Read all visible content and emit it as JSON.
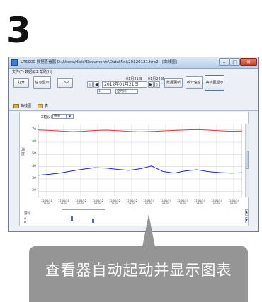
{
  "step_number": "3",
  "window": {
    "title": "LR5000 数据查看器 D:\\Users\\Hioki\\Documents\\DataMini\\20120121.hrp2 - [曲线图]",
    "controls": {
      "minimize": "–",
      "maximize": "□",
      "close": "✕"
    },
    "menu": [
      "文件(F)",
      "数据加工",
      "帮助(H)"
    ],
    "toolbar": {
      "open_label": "打开",
      "show_label": "信息显示",
      "csv_label": "CSV",
      "range_text": "01月21日 — 01月24日",
      "date_value": "2012年01月21日",
      "day_value": "1",
      "interval_value": "全时间",
      "refresh_label": "数据更新",
      "stats_label": "统计信息",
      "display_label": "曲线图显示"
    },
    "tabs": [
      {
        "label": "曲线图",
        "icon": "chart-icon"
      },
      {
        "label": "表",
        "icon": "table-icon"
      }
    ],
    "graph": {
      "xaxis_label": "X轴设置",
      "xaxis_value": "通道",
      "ylabel": "温度",
      "xticks": [
        "12/01/21 12:00",
        "12/01/21 18:00",
        "12/01/22 00:00",
        "12/01/22 06:00",
        "12/01/22 12:00",
        "12/01/22 18:00",
        "12/01/23 00:00",
        "12/01/23 06:00",
        "12/01/23 12:00",
        "12/01/23 18:00",
        "12/01/24 00:00",
        "12/01/24 06:00"
      ],
      "bottom_label": "游标",
      "bottom_a": "A",
      "bottom_b": "B"
    }
  },
  "caption": "查看器自动起动并显示图表",
  "colors": {
    "caption_bg": "#959595",
    "series_red": "#d83a3a",
    "series_blue": "#1a27b8"
  },
  "chart_data": {
    "type": "line",
    "ylabel": "温度",
    "ylim": [
      15,
      75
    ],
    "yticks": [
      70,
      60,
      50,
      40,
      30,
      20
    ],
    "x": [
      0,
      4,
      8,
      12,
      16,
      20,
      24,
      28,
      32,
      36,
      40,
      44,
      48,
      52,
      56,
      60,
      64,
      68,
      72
    ],
    "series": [
      {
        "color": "#d83a3a",
        "values": [
          70,
          69.6,
          69.1,
          68.6,
          68.9,
          69.5,
          69.8,
          69.4,
          68.8,
          68.4,
          68.7,
          69.2,
          69.6,
          69.9,
          70.2,
          69.8,
          69.3,
          68.9,
          69.1
        ]
      },
      {
        "color": "#1a27b8",
        "values": [
          33,
          33.8,
          34.9,
          36.6,
          38,
          39.2,
          38.8,
          37.8,
          37,
          38.3,
          40.5,
          36.1,
          34.8,
          36.6,
          37.5,
          36,
          35.2,
          34.8,
          35.1
        ]
      }
    ]
  }
}
